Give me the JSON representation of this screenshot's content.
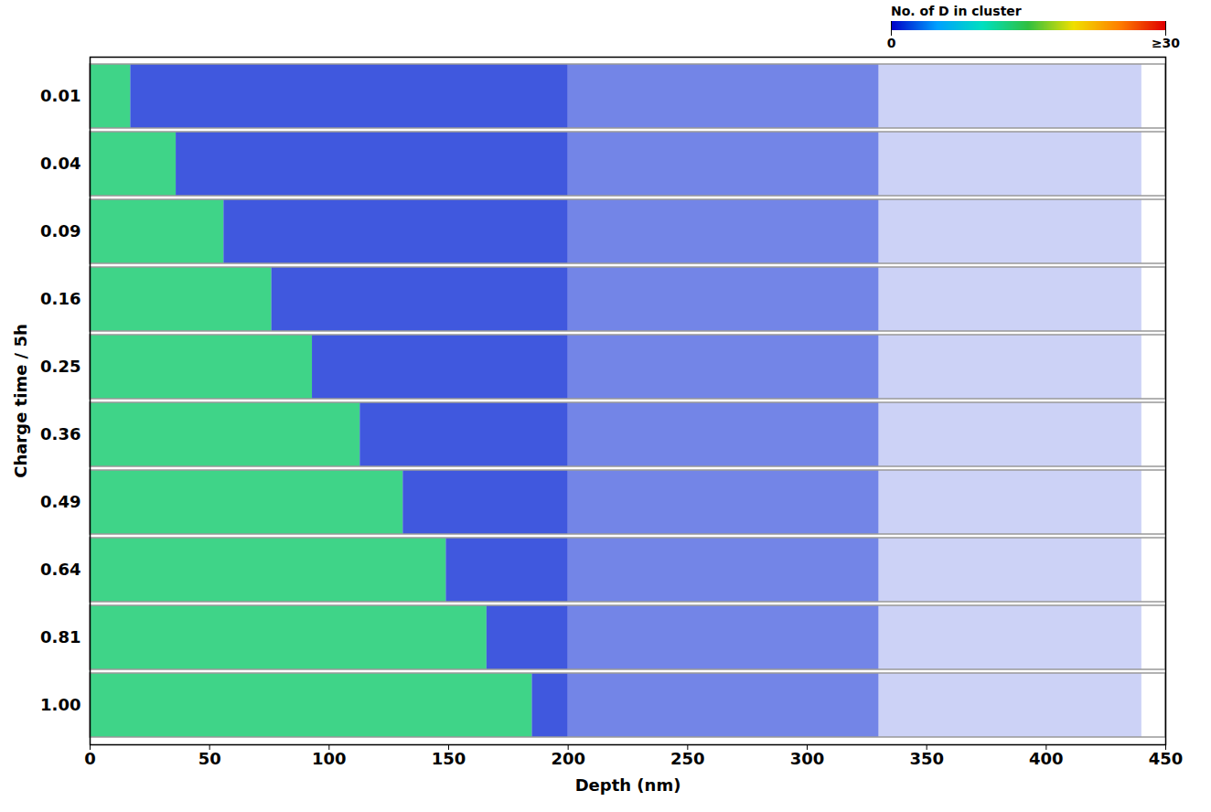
{
  "chart_data": {
    "type": "heatmap",
    "xlabel": "Depth (nm)",
    "ylabel": "Charge time / 5h",
    "xlim": [
      0,
      450
    ],
    "xticks": [
      0,
      50,
      100,
      150,
      200,
      250,
      300,
      350,
      400,
      450
    ],
    "categories": [
      "0.01",
      "0.04",
      "0.09",
      "0.16",
      "0.25",
      "0.36",
      "0.49",
      "0.64",
      "0.81",
      "1.00"
    ],
    "colorbar": {
      "label": "No. of D in cluster",
      "range": [
        0,
        30
      ],
      "ticks": [
        0,
        {
          "value": 30,
          "label": "≥30"
        }
      ],
      "colors": [
        "#0000c8",
        "#00a0ff",
        "#00e0c0",
        "#30c040",
        "#f0e000",
        "#ff8000",
        "#e00000"
      ]
    },
    "rows": [
      {
        "label": "0.01",
        "cells": [
          {
            "x0": 0,
            "x1": 17,
            "value": 13,
            "density": 0.85
          },
          {
            "x0": 17,
            "x1": 200,
            "value": 1,
            "density": 0.75
          },
          {
            "x0": 200,
            "x1": 330,
            "value": 1,
            "density": 0.55
          },
          {
            "x0": 330,
            "x1": 440,
            "value": 1,
            "density": 0.2
          }
        ]
      },
      {
        "label": "0.04",
        "cells": [
          {
            "x0": 0,
            "x1": 36,
            "value": 13,
            "density": 0.85
          },
          {
            "x0": 36,
            "x1": 200,
            "value": 1,
            "density": 0.75
          },
          {
            "x0": 200,
            "x1": 330,
            "value": 1,
            "density": 0.55
          },
          {
            "x0": 330,
            "x1": 440,
            "value": 1,
            "density": 0.2
          }
        ]
      },
      {
        "label": "0.09",
        "cells": [
          {
            "x0": 0,
            "x1": 56,
            "value": 13,
            "density": 0.85
          },
          {
            "x0": 56,
            "x1": 200,
            "value": 1,
            "density": 0.75
          },
          {
            "x0": 200,
            "x1": 330,
            "value": 1,
            "density": 0.55
          },
          {
            "x0": 330,
            "x1": 440,
            "value": 1,
            "density": 0.2
          }
        ]
      },
      {
        "label": "0.16",
        "cells": [
          {
            "x0": 0,
            "x1": 76,
            "value": 13,
            "density": 0.85
          },
          {
            "x0": 76,
            "x1": 200,
            "value": 1,
            "density": 0.75
          },
          {
            "x0": 200,
            "x1": 330,
            "value": 1,
            "density": 0.55
          },
          {
            "x0": 330,
            "x1": 440,
            "value": 1,
            "density": 0.2
          }
        ]
      },
      {
        "label": "0.25",
        "cells": [
          {
            "x0": 0,
            "x1": 93,
            "value": 13,
            "density": 0.85
          },
          {
            "x0": 93,
            "x1": 200,
            "value": 1,
            "density": 0.75
          },
          {
            "x0": 200,
            "x1": 330,
            "value": 1,
            "density": 0.55
          },
          {
            "x0": 330,
            "x1": 440,
            "value": 1,
            "density": 0.2
          }
        ]
      },
      {
        "label": "0.36",
        "cells": [
          {
            "x0": 0,
            "x1": 113,
            "value": 13,
            "density": 0.85
          },
          {
            "x0": 113,
            "x1": 200,
            "value": 1,
            "density": 0.75
          },
          {
            "x0": 200,
            "x1": 330,
            "value": 1,
            "density": 0.55
          },
          {
            "x0": 330,
            "x1": 440,
            "value": 1,
            "density": 0.2
          }
        ]
      },
      {
        "label": "0.49",
        "cells": [
          {
            "x0": 0,
            "x1": 131,
            "value": 13,
            "density": 0.85
          },
          {
            "x0": 131,
            "x1": 200,
            "value": 1,
            "density": 0.75
          },
          {
            "x0": 200,
            "x1": 330,
            "value": 1,
            "density": 0.55
          },
          {
            "x0": 330,
            "x1": 440,
            "value": 1,
            "density": 0.2
          }
        ]
      },
      {
        "label": "0.64",
        "cells": [
          {
            "x0": 0,
            "x1": 149,
            "value": 13,
            "density": 0.85
          },
          {
            "x0": 149,
            "x1": 200,
            "value": 1,
            "density": 0.75
          },
          {
            "x0": 200,
            "x1": 330,
            "value": 1,
            "density": 0.55
          },
          {
            "x0": 330,
            "x1": 440,
            "value": 1,
            "density": 0.2
          }
        ]
      },
      {
        "label": "0.81",
        "cells": [
          {
            "x0": 0,
            "x1": 166,
            "value": 13,
            "density": 0.85
          },
          {
            "x0": 166,
            "x1": 200,
            "value": 1,
            "density": 0.75
          },
          {
            "x0": 200,
            "x1": 330,
            "value": 1,
            "density": 0.55
          },
          {
            "x0": 330,
            "x1": 440,
            "value": 1,
            "density": 0.2
          }
        ]
      },
      {
        "label": "1.00",
        "cells": [
          {
            "x0": 0,
            "x1": 185,
            "value": 13,
            "density": 0.85
          },
          {
            "x0": 185,
            "x1": 200,
            "value": 1,
            "density": 0.75
          },
          {
            "x0": 200,
            "x1": 330,
            "value": 1,
            "density": 0.55
          },
          {
            "x0": 330,
            "x1": 440,
            "value": 1,
            "density": 0.2
          }
        ]
      }
    ]
  }
}
